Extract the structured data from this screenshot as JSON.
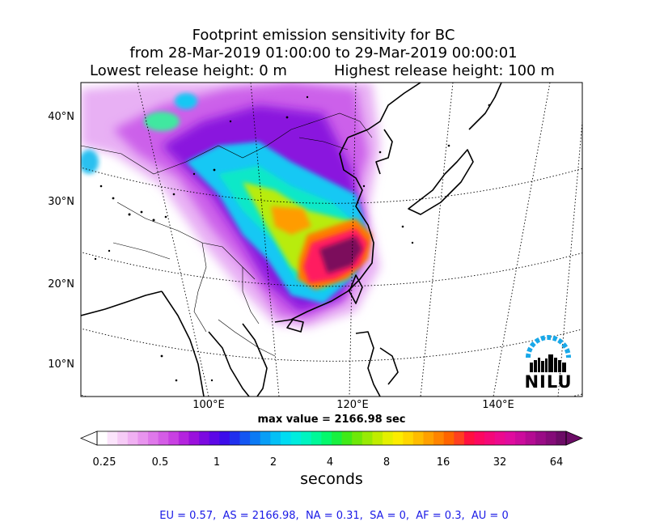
{
  "title": {
    "line1": "Footprint emission sensitivity for BC",
    "line2": "from 28-Mar-2019 01:00:00 to 29-Mar-2019 00:00:01",
    "line3_left": "Lowest release height: 0 m",
    "line3_right": "Highest release height: 100 m"
  },
  "map": {
    "lat_labels": [
      "40°N",
      "30°N",
      "20°N",
      "10°N"
    ],
    "lon_labels": [
      "100°E",
      "120°E",
      "140°E"
    ],
    "max_value_text": "max value = 2166.98 sec",
    "logo_text": "NILU"
  },
  "colorbar": {
    "tick_labels": [
      "0.25",
      "0.5",
      "1",
      "2",
      "4",
      "8",
      "16",
      "32",
      "64"
    ],
    "unit_label": "seconds",
    "colors": [
      "#ffffff",
      "#fbe4fb",
      "#f6cbf6",
      "#f0b0f2",
      "#e894ee",
      "#df78ea",
      "#d45ce6",
      "#c840e2",
      "#b424de",
      "#9a10dc",
      "#7c0ae0",
      "#5c08e6",
      "#3c0cea",
      "#2030ee",
      "#1456f2",
      "#0c7af4",
      "#089ef6",
      "#04c0f6",
      "#00dcf2",
      "#00ecde",
      "#00f4c0",
      "#00f898",
      "#04f86c",
      "#18f040",
      "#40ea18",
      "#6ee808",
      "#98ea04",
      "#c0ec00",
      "#e4f000",
      "#fcec00",
      "#ffd600",
      "#ffbc00",
      "#ffa000",
      "#ff8400",
      "#ff6400",
      "#ff4020",
      "#ff1040",
      "#fc0860",
      "#f40878",
      "#ec0a8e",
      "#e00c9e",
      "#cc0c9c",
      "#b40c92",
      "#9a0c86",
      "#840c78",
      "#6c0c66"
    ]
  },
  "footer": {
    "regions_text": "EU = 0.57,  AS = 2166.98,  NA = 0.31,  SA = 0,  AF = 0.3,  AU = 0"
  }
}
